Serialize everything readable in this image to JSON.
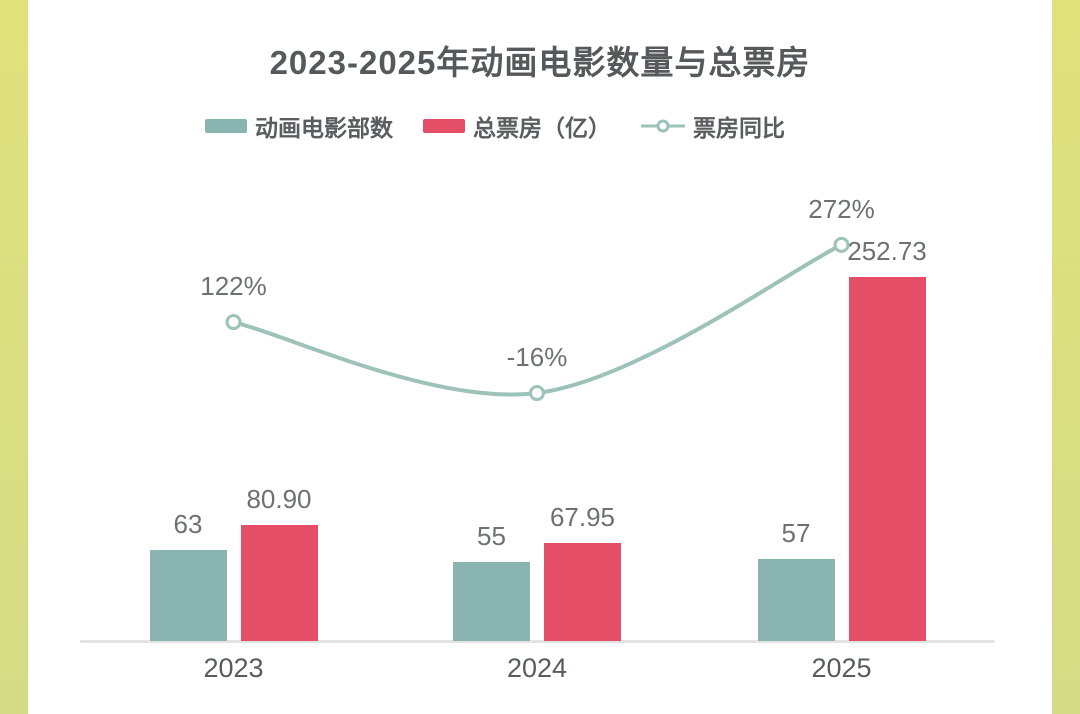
{
  "title": "2023-2025年动画电影数量与总票房",
  "legend": {
    "items": [
      {
        "label": "动画电影部数",
        "marker": "bar",
        "color_key": "bar_count"
      },
      {
        "label": "总票房（亿）",
        "marker": "bar",
        "color_key": "bar_boxoffice"
      },
      {
        "label": "票房同比",
        "marker": "line",
        "color_key": "line"
      }
    ]
  },
  "colors": {
    "background_top": "#e0e27c",
    "background_bottom": "#d3db85",
    "card": "#ffffff",
    "bar_count": "#89b4b0",
    "bar_boxoffice": "#e44e66",
    "line": "#9cc2ba",
    "title_text": "#57585c",
    "label_text": "#6f7074",
    "axis_text": "#5a5b5f",
    "axis_line": "#e3e3e5"
  },
  "chart_data": {
    "type": "combo",
    "categories": [
      "2023",
      "2024",
      "2025"
    ],
    "series": [
      {
        "name": "动画电影部数",
        "type": "bar",
        "color_key": "bar_count",
        "values": [
          63,
          55,
          57
        ],
        "data_labels": [
          "63",
          "55",
          "57"
        ]
      },
      {
        "name": "总票房（亿）",
        "type": "bar",
        "color_key": "bar_boxoffice",
        "values": [
          80.9,
          67.95,
          252.73
        ],
        "data_labels": [
          "80.90",
          "67.95",
          "252.73"
        ]
      },
      {
        "name": "票房同比",
        "type": "line",
        "color_key": "line",
        "unit": "%",
        "values": [
          122,
          -16,
          272
        ],
        "data_labels": [
          "122%",
          "-16%",
          "272%"
        ]
      }
    ],
    "title": "2023-2025年动画电影数量与总票房",
    "xlabel": "",
    "ylabel": "",
    "legend_position": "top",
    "grid": false,
    "bar_axis_range": [
      0,
      260
    ],
    "line_axis_unit": "%"
  }
}
